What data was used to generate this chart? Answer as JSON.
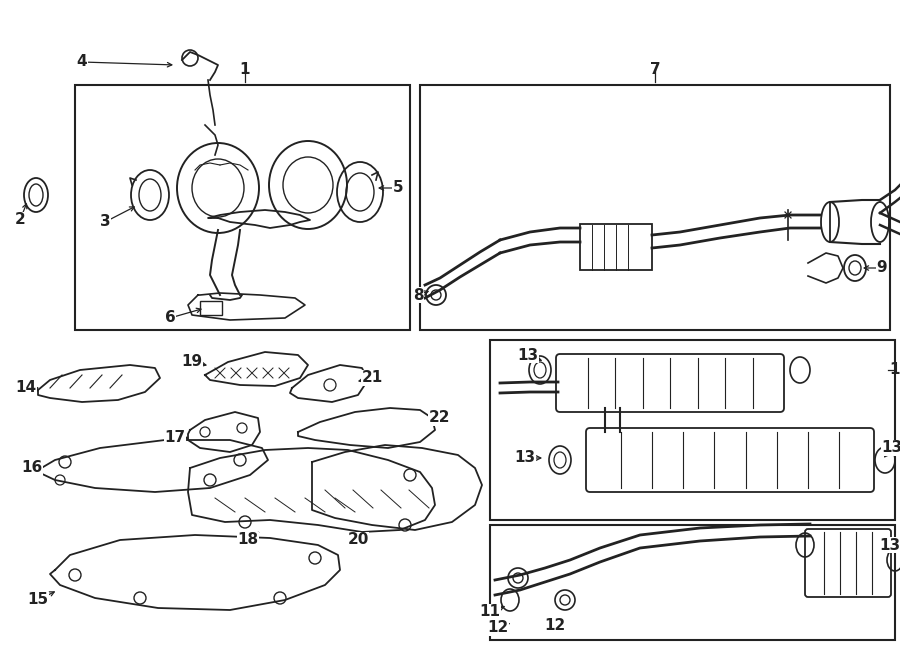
{
  "bg_color": "#ffffff",
  "line_color": "#222222",
  "fig_width": 9.0,
  "fig_height": 6.62,
  "dpi": 100
}
